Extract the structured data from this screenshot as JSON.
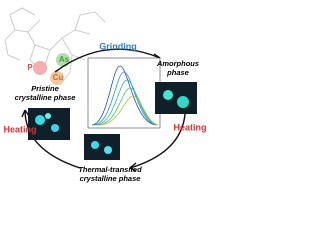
{
  "elements": {
    "p": "P",
    "as": "As",
    "cu": "Cu"
  },
  "phases": {
    "pristine": [
      "Pristine",
      "crystalline phase"
    ],
    "amorphous": [
      "Amorphous",
      "phase"
    ],
    "thermal": [
      "Thermal-transited",
      "crystalline phase"
    ]
  },
  "processes": {
    "grinding": "Grinding",
    "heating_left": "Heating",
    "heating_right": "Heating"
  }
}
